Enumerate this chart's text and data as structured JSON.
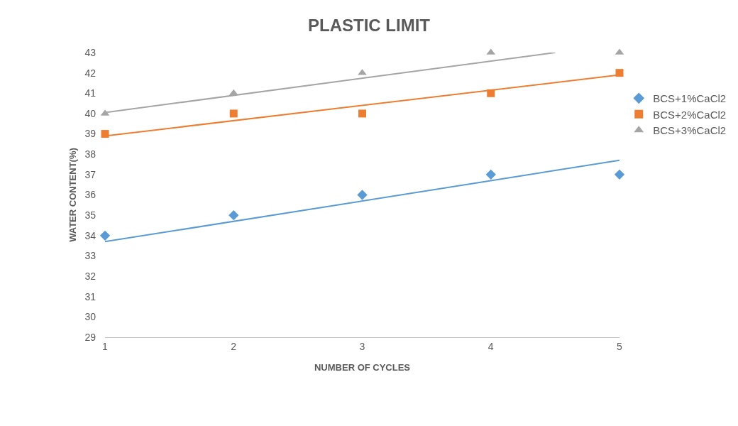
{
  "chart_data": {
    "type": "scatter",
    "title": "PLASTIC LIMIT",
    "xlabel": "NUMBER OF CYCLES",
    "ylabel": "WATER CONTENT(%)",
    "x": [
      1,
      2,
      3,
      4,
      5
    ],
    "series": [
      {
        "name": "BCS+1%CaCl2",
        "color": "#5b9bd5",
        "marker": "diamond",
        "values": [
          34,
          35,
          36,
          37,
          37
        ]
      },
      {
        "name": "BCS+2%CaCl2",
        "color": "#ed7d31",
        "marker": "square",
        "values": [
          39,
          40,
          40,
          41,
          42
        ]
      },
      {
        "name": "BCS+3%CaCl2",
        "color": "#a5a5a5",
        "marker": "triangle",
        "values": [
          40,
          41,
          42,
          43,
          43
        ]
      },
      {
        "type": "line",
        "color": "#5b9bd5",
        "line_style": "solid",
        "x": [
          1,
          5
        ],
        "values": [
          33.7,
          37.7
        ]
      },
      {
        "type": "line",
        "color": "#ed7d31",
        "line_style": "solid",
        "x": [
          1,
          5
        ],
        "values": [
          38.9,
          41.9
        ]
      },
      {
        "type": "line",
        "color": "#a5a5a5",
        "line_style": "solid",
        "x": [
          1,
          4.5
        ],
        "values": [
          40.05,
          43
        ]
      }
    ],
    "xlim": [
      1,
      5
    ],
    "xticks": [
      1,
      2,
      3,
      4,
      5
    ],
    "ylim": [
      29,
      43
    ],
    "yticks": [
      29,
      30,
      31,
      32,
      33,
      34,
      35,
      36,
      37,
      38,
      39,
      40,
      41,
      42,
      43
    ],
    "grid": false,
    "legend": "right"
  }
}
